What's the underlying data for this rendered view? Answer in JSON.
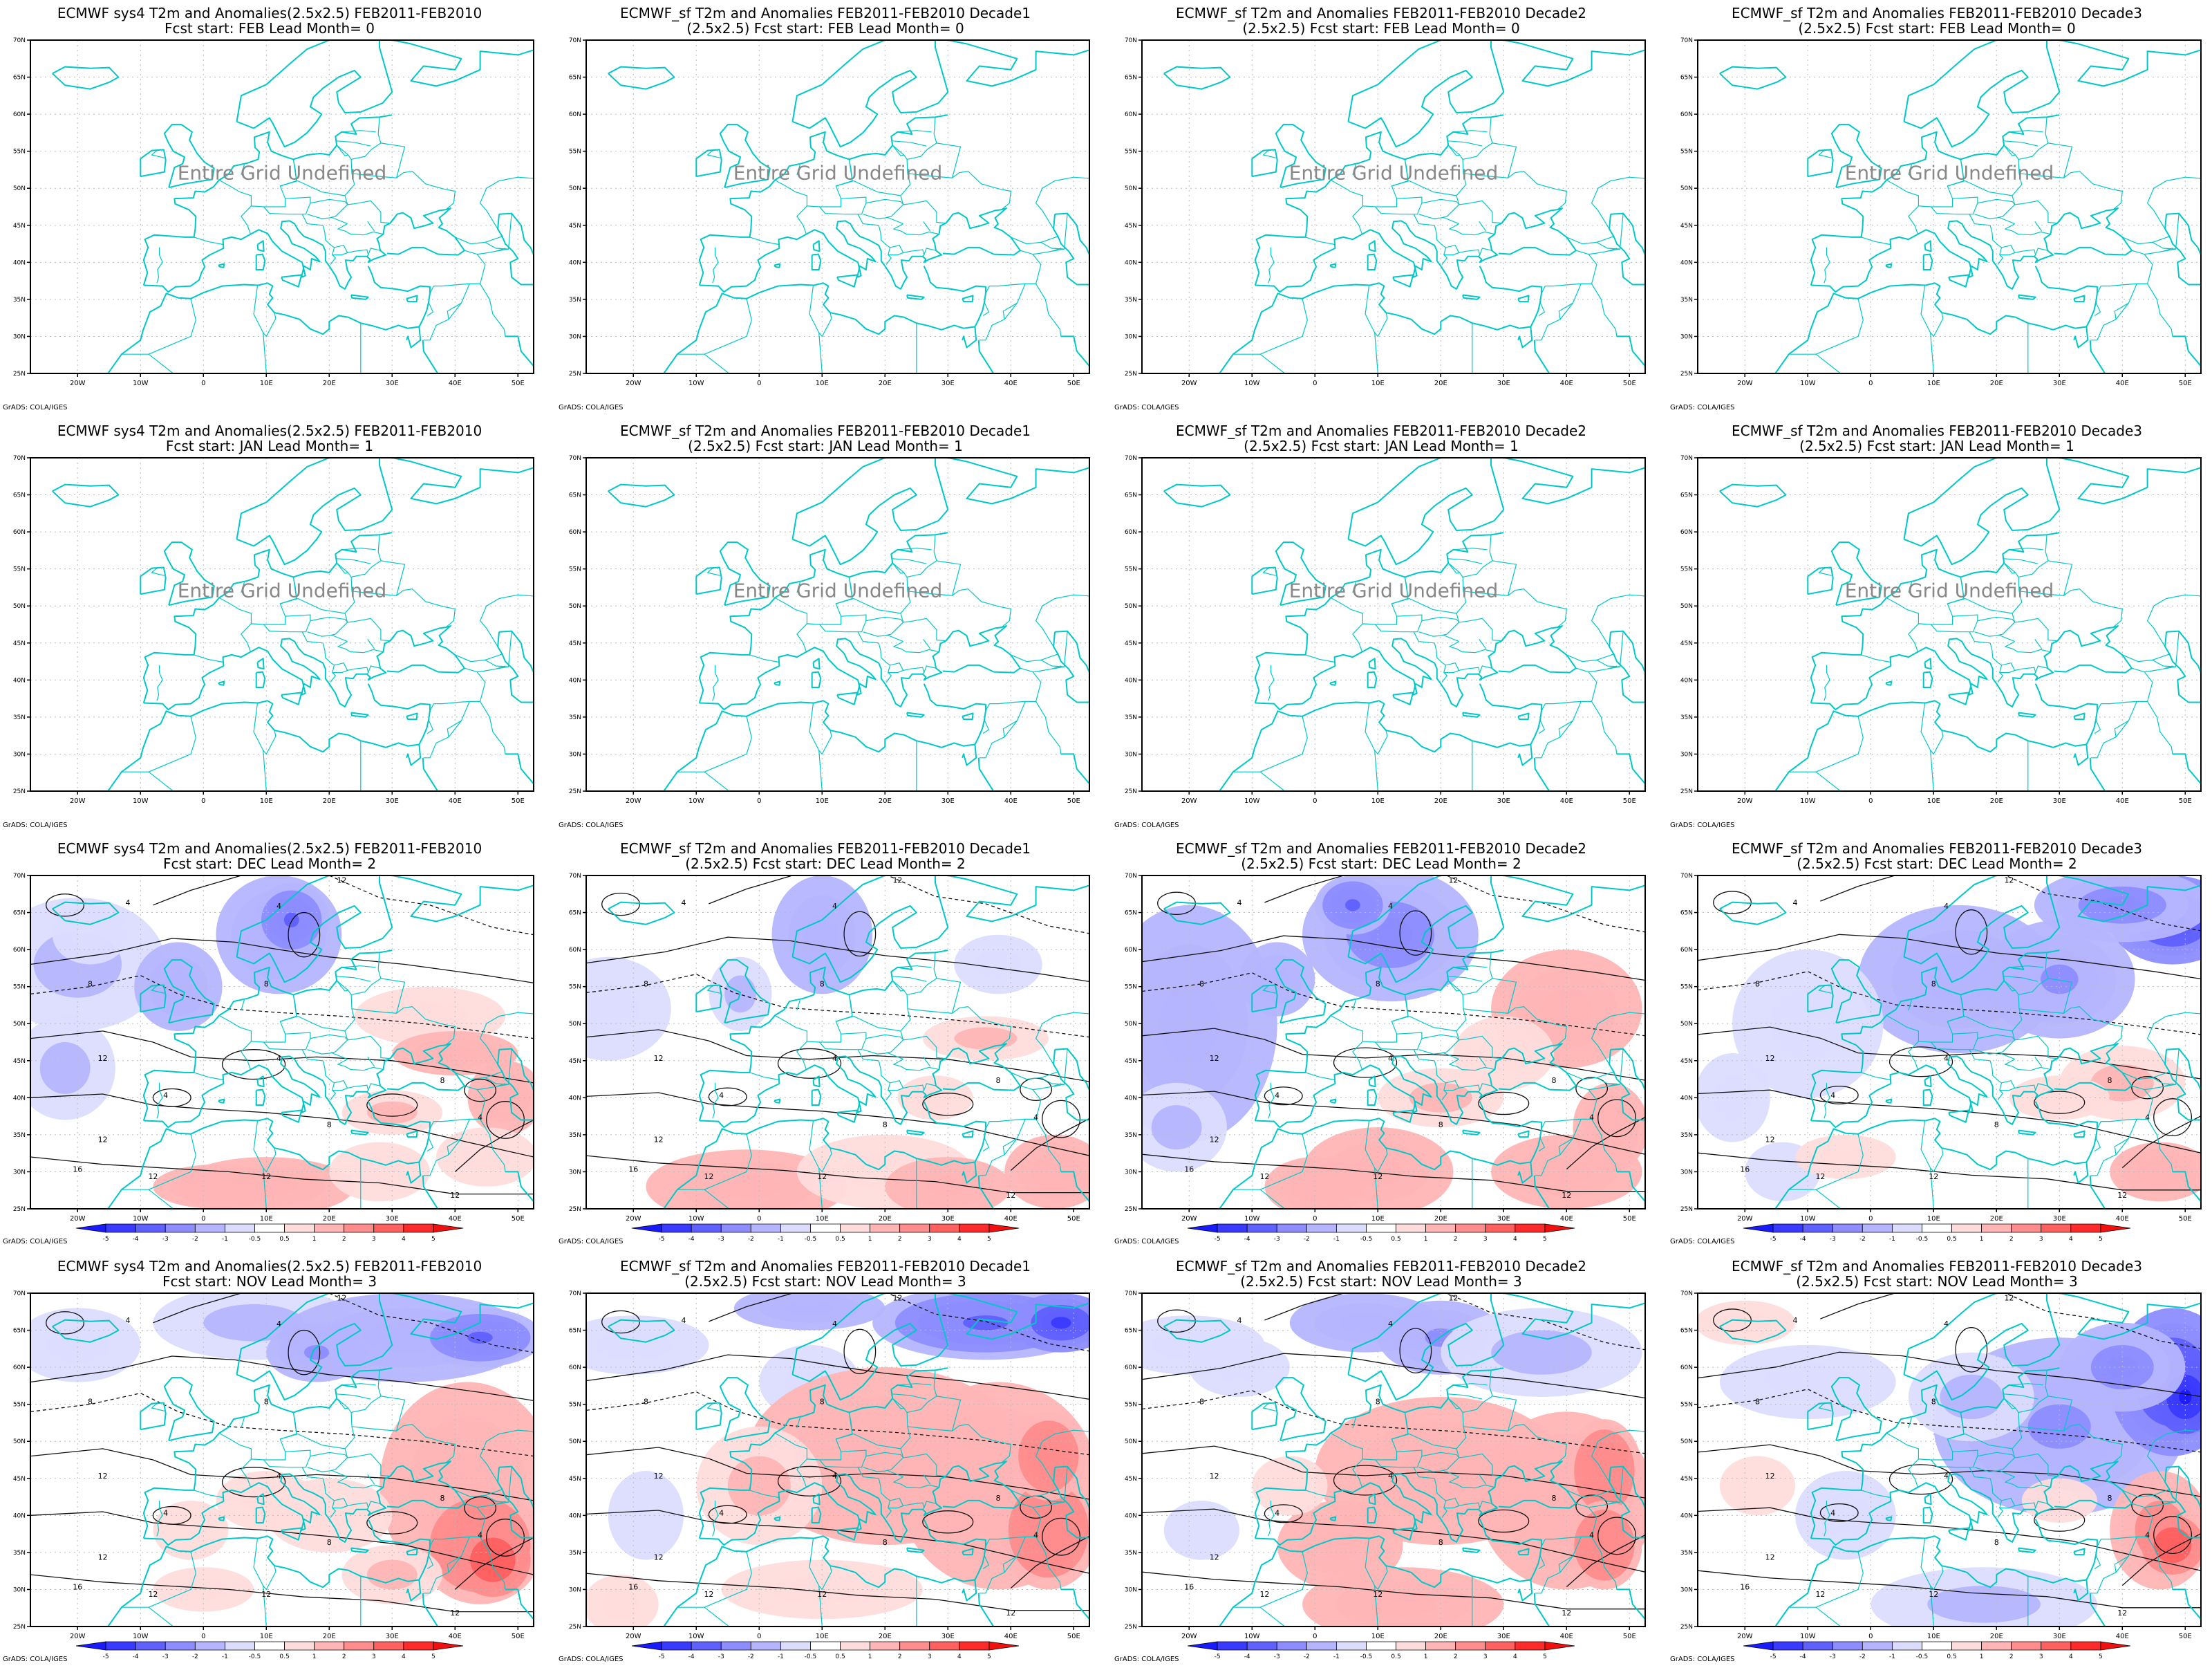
{
  "axes": {
    "lon_ticks": [
      "20W",
      "10W",
      "0",
      "10E",
      "20E",
      "30E",
      "40E",
      "50E"
    ],
    "lat_ticks": [
      "70N",
      "65N",
      "60N",
      "55N",
      "50N",
      "45N",
      "40N",
      "35N",
      "30N",
      "25N"
    ]
  },
  "colorbar": {
    "labels": [
      "-5",
      "-4",
      "-3",
      "-2",
      "-1",
      "-0.5",
      "0.5",
      "1",
      "2",
      "3",
      "4",
      "5"
    ],
    "colors": [
      "#1a1aff",
      "#3a3aff",
      "#6060ff",
      "#8d8dff",
      "#b5b5ff",
      "#dcdcff",
      "#ffffff",
      "#ffdcdc",
      "#ffb5b5",
      "#ff8d8d",
      "#ff6060",
      "#ff2a2a",
      "#f01010"
    ]
  },
  "credit": "GrADS: COLA/IGES",
  "undefined_text": "Entire Grid Undefined",
  "colors": {
    "coast": "#00c8c8",
    "frame": "#000000",
    "grid": "#bbbbbb"
  },
  "rows": [
    {
      "panels": [
        {
          "title1": "ECMWF sys4 T2m and Anomalies(2.5x2.5) FEB2011-FEB2010",
          "title2": "Fcst start: FEB  Lead Month= 0",
          "status": "undefined"
        },
        {
          "title1": "ECMWF_sf T2m and Anomalies FEB2011-FEB2010 Decade1",
          "title2": "(2.5x2.5) Fcst start: FEB  Lead Month= 0",
          "status": "undefined"
        },
        {
          "title1": "ECMWF_sf T2m and Anomalies FEB2011-FEB2010 Decade2",
          "title2": "(2.5x2.5) Fcst start: FEB  Lead Month= 0",
          "status": "undefined"
        },
        {
          "title1": "ECMWF_sf T2m and Anomalies FEB2011-FEB2010 Decade3",
          "title2": "(2.5x2.5) Fcst start: FEB  Lead Month= 0",
          "status": "undefined"
        }
      ]
    },
    {
      "panels": [
        {
          "title1": "ECMWF sys4 T2m and Anomalies(2.5x2.5) FEB2011-FEB2010",
          "title2": "Fcst start: JAN  Lead Month= 1",
          "status": "undefined"
        },
        {
          "title1": "ECMWF_sf T2m and Anomalies FEB2011-FEB2010 Decade1",
          "title2": "(2.5x2.5) Fcst start: JAN  Lead Month= 1",
          "status": "undefined"
        },
        {
          "title1": "ECMWF_sf T2m and Anomalies FEB2011-FEB2010 Decade2",
          "title2": "(2.5x2.5) Fcst start: JAN  Lead Month= 1",
          "status": "undefined"
        },
        {
          "title1": "ECMWF_sf T2m and Anomalies FEB2011-FEB2010 Decade3",
          "title2": "(2.5x2.5) Fcst start: JAN  Lead Month= 1",
          "status": "undefined"
        }
      ]
    },
    {
      "panels": [
        {
          "title1": "ECMWF sys4 T2m and Anomalies(2.5x2.5) FEB2011-FEB2010",
          "title2": "Fcst start: DEC  Lead Month= 2",
          "status": "field",
          "variant": 0,
          "contour_labels": [
            "12",
            "4",
            "4",
            "8",
            "8",
            "12",
            "4",
            "4",
            "8",
            "8",
            "4",
            "12",
            "16",
            "12",
            "12",
            "12"
          ]
        },
        {
          "title1": "ECMWF_sf T2m and Anomalies FEB2011-FEB2010 Decade1",
          "title2": "(2.5x2.5) Fcst start: DEC  Lead Month= 2",
          "status": "field",
          "variant": 1,
          "contour_labels": [
            "12",
            "4",
            "4",
            "8",
            "8",
            "12",
            "4",
            "4",
            "8",
            "8",
            "4",
            "12",
            "16",
            "12",
            "12",
            "12"
          ]
        },
        {
          "title1": "ECMWF_sf T2m and Anomalies FEB2011-FEB2010 Decade2",
          "title2": "(2.5x2.5) Fcst start: DEC  Lead Month= 2",
          "status": "field",
          "variant": 2,
          "contour_labels": [
            "12",
            "4",
            "4",
            "8",
            "8",
            "12",
            "4",
            "4",
            "8",
            "8",
            "4",
            "12",
            "16",
            "12",
            "12",
            "12"
          ]
        },
        {
          "title1": "ECMWF_sf T2m and Anomalies FEB2011-FEB2010 Decade3",
          "title2": "(2.5x2.5) Fcst start: DEC  Lead Month= 2",
          "status": "field",
          "variant": 3,
          "contour_labels": [
            "12",
            "4",
            "4",
            "8",
            "8",
            "12",
            "4",
            "4",
            "8",
            "8",
            "4",
            "12",
            "16",
            "12",
            "12",
            "12"
          ]
        }
      ]
    },
    {
      "panels": [
        {
          "title1": "ECMWF sys4 T2m and Anomalies(2.5x2.5) FEB2011-FEB2010",
          "title2": "Fcst start: NOV  Lead Month= 3",
          "status": "field",
          "variant": 4,
          "contour_labels": [
            "12",
            "4",
            "4",
            "8",
            "8",
            "12",
            "4",
            "4",
            "8",
            "8",
            "4",
            "12",
            "16",
            "12",
            "12",
            "12"
          ]
        },
        {
          "title1": "ECMWF_sf T2m and Anomalies FEB2011-FEB2010 Decade1",
          "title2": "(2.5x2.5) Fcst start: NOV  Lead Month= 3",
          "status": "field",
          "variant": 5,
          "contour_labels": [
            "12",
            "4",
            "4",
            "8",
            "8",
            "12",
            "4",
            "4",
            "8",
            "8",
            "4",
            "12",
            "16",
            "12",
            "12",
            "12"
          ]
        },
        {
          "title1": "ECMWF_sf T2m and Anomalies FEB2011-FEB2010 Decade2",
          "title2": "(2.5x2.5) Fcst start: NOV  Lead Month= 3",
          "status": "field",
          "variant": 6,
          "contour_labels": [
            "12",
            "4",
            "4",
            "8",
            "8",
            "12",
            "4",
            "4",
            "8",
            "8",
            "4",
            "12",
            "16",
            "12",
            "12",
            "12"
          ]
        },
        {
          "title1": "ECMWF_sf T2m and Anomalies FEB2011-FEB2010 Decade3",
          "title2": "(2.5x2.5) Fcst start: NOV  Lead Month= 3",
          "status": "field",
          "variant": 7,
          "contour_labels": [
            "12",
            "4",
            "4",
            "8",
            "8",
            "12",
            "4",
            "4",
            "8",
            "8",
            "4",
            "12",
            "16",
            "12",
            "12",
            "12"
          ]
        }
      ]
    }
  ]
}
